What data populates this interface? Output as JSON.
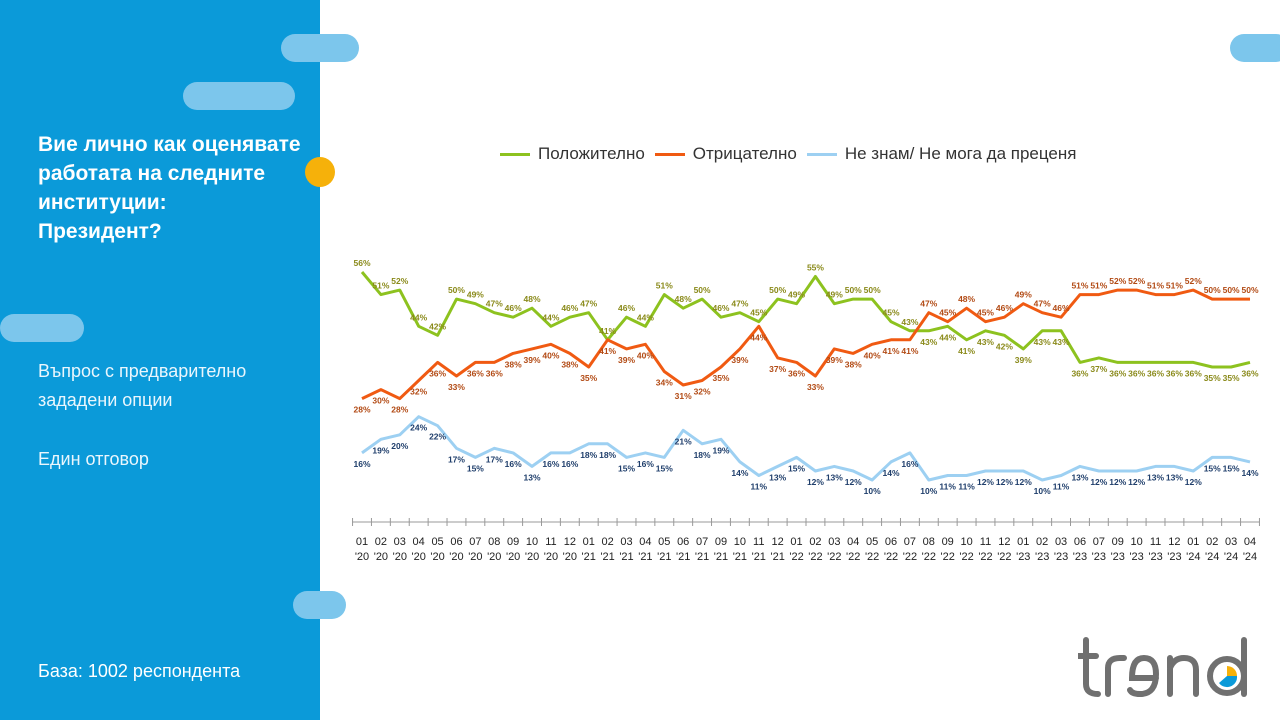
{
  "sidebar": {
    "title_lines": [
      "Вие лично как оценявате",
      "работата на следните",
      "институции:",
      "Президент?"
    ],
    "note1_lines": [
      "Въпрос с предварително",
      "зададени опции"
    ],
    "note2": "Един отговор",
    "base": "База: 1002 респондента"
  },
  "logo": {
    "text": "trend"
  },
  "colors": {
    "sidebar": "#0b9ad9",
    "positive": "#8dc21f",
    "negative": "#f05a12",
    "dontknow": "#9dd0f2",
    "positive_label": "#8a8a1a",
    "negative_label": "#b24a14",
    "dontknow_label": "#1f3e6b"
  },
  "chart_data": {
    "type": "line",
    "categories": [
      "01 '20",
      "02 '20",
      "03 '20",
      "04 '20",
      "05 '20",
      "06 '20",
      "07 '20",
      "08 '20",
      "09 '20",
      "10 '20",
      "11 '20",
      "12 '20",
      "01 '21",
      "02 '21",
      "03 '21",
      "04 '21",
      "05 '21",
      "06 '21",
      "07 '21",
      "09 '21",
      "10 '21",
      "11 '21",
      "12 '21",
      "01 '22",
      "02 '22",
      "03 '22",
      "04 '22",
      "05 '22",
      "06 '22",
      "07 '22",
      "08 '22",
      "09 '22",
      "10 '22",
      "11 '22",
      "12 '22",
      "01 '23",
      "02 '23",
      "03 '23",
      "06 '23",
      "07 '23",
      "09 '23",
      "10 '23",
      "11 '23",
      "12 '23",
      "01 '24",
      "02 '24",
      "03 '24",
      "04 '24"
    ],
    "x_month": [
      "01",
      "02",
      "03",
      "04",
      "05",
      "06",
      "07",
      "08",
      "09",
      "10",
      "11",
      "12",
      "01",
      "02",
      "03",
      "04",
      "05",
      "06",
      "07",
      "09",
      "10",
      "11",
      "12",
      "01",
      "02",
      "03",
      "04",
      "05",
      "06",
      "07",
      "08",
      "09",
      "10",
      "11",
      "12",
      "01",
      "02",
      "03",
      "06",
      "07",
      "09",
      "10",
      "11",
      "12",
      "01",
      "02",
      "03",
      "04"
    ],
    "x_year": [
      "'20",
      "'20",
      "'20",
      "'20",
      "'20",
      "'20",
      "'20",
      "'20",
      "'20",
      "'20",
      "'20",
      "'20",
      "'21",
      "'21",
      "'21",
      "'21",
      "'21",
      "'21",
      "'21",
      "'21",
      "'21",
      "'21",
      "'21",
      "'22",
      "'22",
      "'22",
      "'22",
      "'22",
      "'22",
      "'22",
      "'22",
      "'22",
      "'22",
      "'22",
      "'22",
      "'23",
      "'23",
      "'23",
      "'23",
      "'23",
      "'23",
      "'23",
      "'23",
      "'23",
      "'24",
      "'24",
      "'24",
      "'24"
    ],
    "series": [
      {
        "name": "Положително",
        "color": "#8dc21f",
        "values": [
          56,
          51,
          52,
          44,
          42,
          50,
          49,
          47,
          46,
          48,
          44,
          46,
          47,
          41,
          46,
          44,
          51,
          48,
          50,
          46,
          47,
          45,
          50,
          49,
          55,
          49,
          50,
          50,
          45,
          43,
          43,
          44,
          41,
          43,
          42,
          39,
          43,
          43,
          36,
          37,
          36,
          36,
          36,
          36,
          36,
          35,
          35,
          36
        ],
        "labels": [
          "56%",
          "51%",
          "52%",
          "44%",
          "42%",
          "50%",
          "49%",
          "47%",
          "46%",
          "48%",
          "44%",
          "46%",
          "47%",
          "41%",
          "46%",
          "44%",
          "51%",
          "48%",
          "50%",
          "46%",
          "47%",
          "45%",
          "50%",
          "49%",
          "55%",
          "49%",
          "50%",
          "50%",
          "45%",
          "43%",
          "43%",
          "44%",
          "41%",
          "43%",
          "42%",
          "39%",
          "43%",
          "43%",
          "36%",
          "37%",
          "36%",
          "36%",
          "36%",
          "36%",
          "36%",
          "35%",
          "35%",
          "36%"
        ],
        "label_pos": [
          -1,
          -1,
          -1,
          -1,
          -1,
          -1,
          -1,
          -1,
          -1,
          -1,
          -1,
          -1,
          -1,
          -1,
          -1,
          -1,
          -1,
          -1,
          -1,
          -1,
          -1,
          -1,
          -1,
          -1,
          -1,
          -1,
          -1,
          -1,
          -1,
          -1,
          1,
          1,
          1,
          1,
          1,
          1,
          1,
          1,
          1,
          1,
          1,
          1,
          1,
          1,
          1,
          1,
          1,
          1
        ]
      },
      {
        "name": "Отрицателно",
        "color": "#f05a12",
        "values": [
          28,
          30,
          28,
          32,
          36,
          33,
          36,
          36,
          38,
          39,
          40,
          38,
          35,
          41,
          39,
          40,
          34,
          31,
          32,
          35,
          39,
          44,
          37,
          36,
          33,
          39,
          38,
          40,
          41,
          41,
          47,
          45,
          48,
          45,
          46,
          49,
          47,
          46,
          51,
          51,
          52,
          52,
          51,
          51,
          52,
          50,
          50,
          50
        ],
        "labels": [
          "28%",
          "30%",
          "28%",
          "32%",
          "36%",
          "33%",
          "36%",
          "36%",
          "38%",
          "39%",
          "40%",
          "38%",
          "35%",
          "41%",
          "39%",
          "40%",
          "34%",
          "31%",
          "32%",
          "35%",
          "39%",
          "44%",
          "37%",
          "36%",
          "33%",
          "39%",
          "38%",
          "40%",
          "41%",
          "41%",
          "47%",
          "45%",
          "48%",
          "45%",
          "46%",
          "49%",
          "47%",
          "46%",
          "51%",
          "51%",
          "52%",
          "52%",
          "51%",
          "51%",
          "52%",
          "50%",
          "50%",
          "50%"
        ],
        "label_pos": [
          1,
          1,
          1,
          1,
          1,
          1,
          1,
          1,
          1,
          1,
          1,
          1,
          1,
          1,
          1,
          1,
          1,
          1,
          1,
          1,
          1,
          1,
          1,
          1,
          1,
          1,
          1,
          1,
          1,
          1,
          -1,
          -1,
          -1,
          -1,
          -1,
          -1,
          -1,
          -1,
          -1,
          -1,
          -1,
          -1,
          -1,
          -1,
          -1,
          -1,
          -1,
          -1
        ]
      },
      {
        "name": "Не знам/ Не мога да преценя",
        "color": "#9dd0f2",
        "values": [
          16,
          19,
          20,
          24,
          22,
          17,
          15,
          17,
          16,
          13,
          16,
          16,
          18,
          18,
          15,
          16,
          15,
          21,
          18,
          19,
          14,
          11,
          13,
          15,
          12,
          13,
          12,
          10,
          14,
          16,
          10,
          11,
          11,
          12,
          12,
          12,
          10,
          11,
          13,
          12,
          12,
          12,
          13,
          13,
          12,
          15,
          15,
          14
        ],
        "labels": [
          "16%",
          "19%",
          "20%",
          "24%",
          "22%",
          "17%",
          "15%",
          "17%",
          "16%",
          "13%",
          "16%",
          "16%",
          "18%",
          "18%",
          "15%",
          "16%",
          "15%",
          "21%",
          "18%",
          "19%",
          "14%",
          "11%",
          "13%",
          "15%",
          "12%",
          "13%",
          "12%",
          "10%",
          "14%",
          "16%",
          "10%",
          "11%",
          "11%",
          "12%",
          "12%",
          "12%",
          "10%",
          "11%",
          "13%",
          "12%",
          "12%",
          "12%",
          "13%",
          "13%",
          "12%",
          "15%",
          "15%",
          "14%"
        ],
        "label_pos": [
          1,
          1,
          1,
          1,
          1,
          1,
          1,
          1,
          1,
          1,
          1,
          1,
          1,
          1,
          1,
          1,
          1,
          1,
          1,
          1,
          1,
          1,
          1,
          1,
          1,
          1,
          1,
          1,
          1,
          1,
          1,
          1,
          1,
          1,
          1,
          1,
          1,
          1,
          1,
          1,
          1,
          1,
          1,
          1,
          1,
          1,
          1,
          1
        ]
      }
    ],
    "legend_position": "top",
    "grid": false
  }
}
